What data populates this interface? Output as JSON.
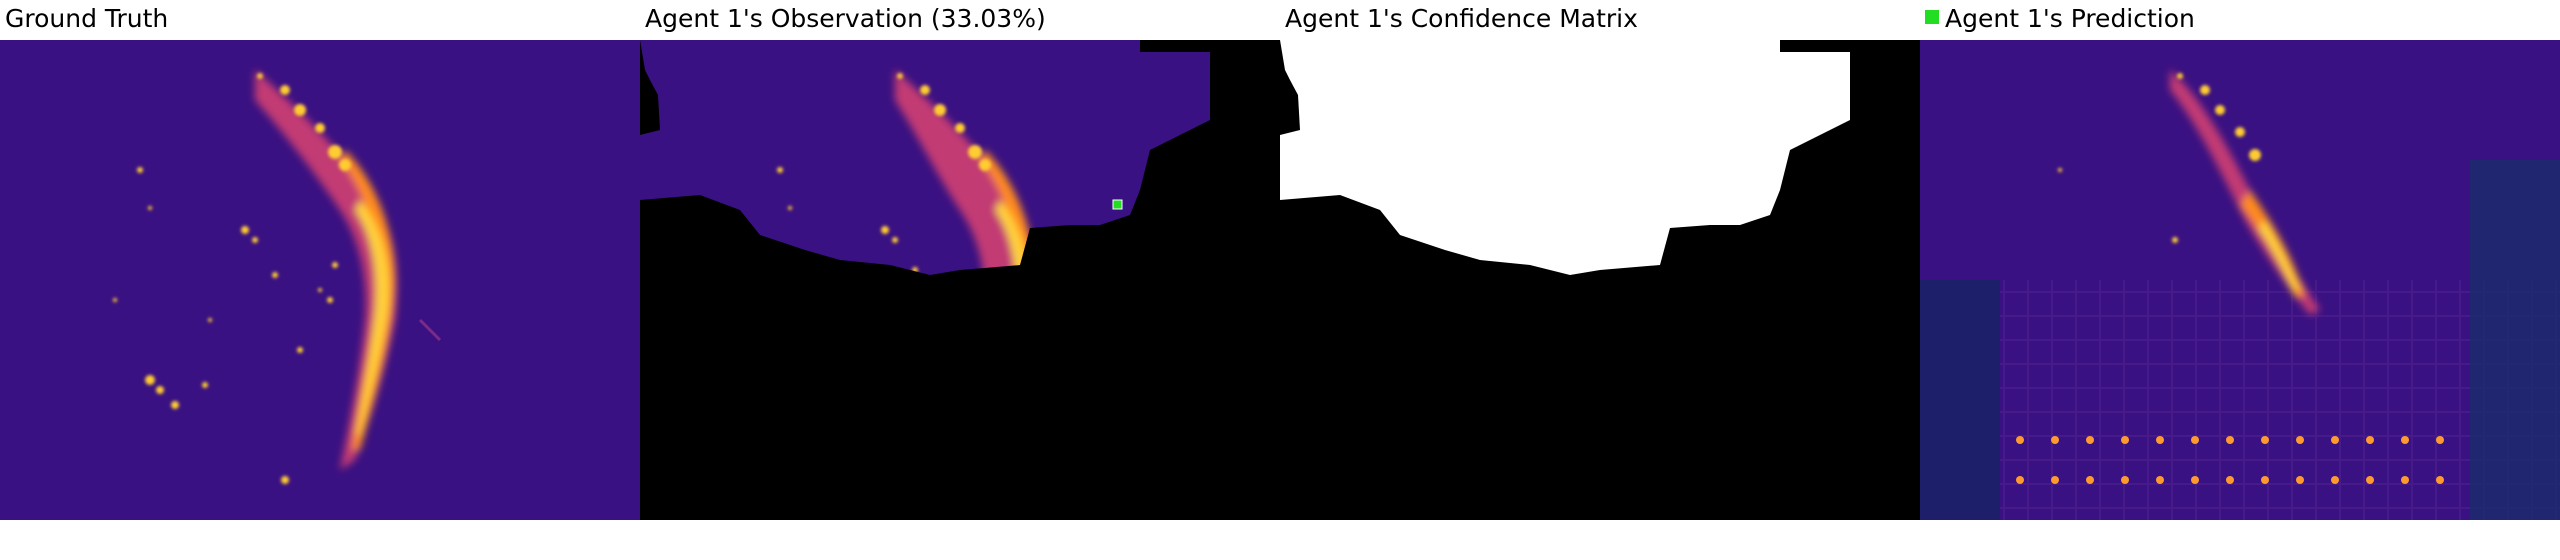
{
  "panels": {
    "ground_truth": {
      "title": "Ground Truth"
    },
    "observation": {
      "title": "Agent 1's Observation (33.03%)"
    },
    "confidence": {
      "title": "Agent 1's Confidence Matrix"
    },
    "prediction": {
      "title": "Agent 1's Prediction"
    }
  },
  "colors": {
    "background_purple": "#3a1182",
    "hot_yellow": "#ffd23a",
    "hot_orange": "#ff8a1e",
    "agent_marker": "#22dd22",
    "mask_black": "#000000",
    "confidence_white": "#ffffff"
  }
}
